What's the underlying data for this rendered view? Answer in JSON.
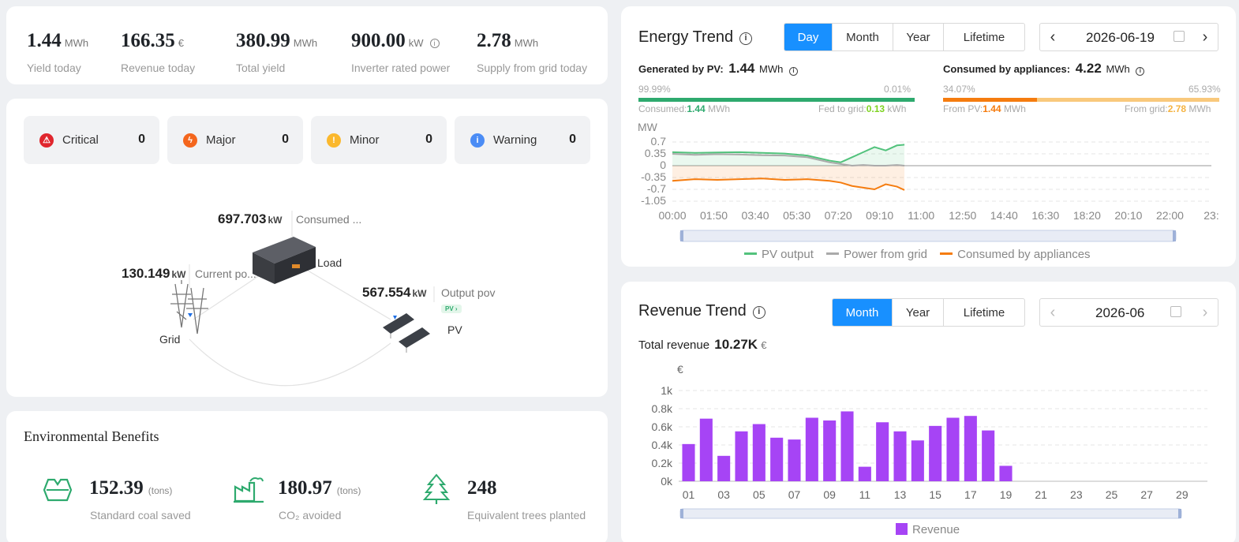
{
  "kpis": [
    {
      "value": "1.44",
      "unit": "MWh",
      "label": "Yield today"
    },
    {
      "value": "166.35",
      "unit": "€",
      "label": "Revenue today"
    },
    {
      "value": "380.99",
      "unit": "MWh",
      "label": "Total yield"
    },
    {
      "value": "900.00",
      "unit": "kW",
      "label": "Inverter rated power"
    },
    {
      "value": "2.78",
      "unit": "MWh",
      "label": "Supply from grid today"
    }
  ],
  "alarms": [
    {
      "label": "Critical",
      "count": "0",
      "color": "#e0262d",
      "icon": "critical-icon"
    },
    {
      "label": "Major",
      "count": "0",
      "color": "#f4661d",
      "icon": "lightning-icon"
    },
    {
      "label": "Minor",
      "count": "0",
      "color": "#fbb82d",
      "icon": "exclamation-icon"
    },
    {
      "label": "Warning",
      "count": "0",
      "color": "#4b8cf5",
      "icon": "info-icon"
    }
  ],
  "flow": {
    "load": {
      "value": "697.703",
      "unit": "kW",
      "desc": "Consumed ...",
      "name": "Load"
    },
    "grid": {
      "value": "130.149",
      "unit": "kW",
      "desc": "Current po...",
      "name": "Grid"
    },
    "pv": {
      "value": "567.554",
      "unit": "kW",
      "desc": "Output pov",
      "name": "PV",
      "badge": "PV ›"
    }
  },
  "environment": {
    "title": "Environmental Benefits",
    "items": [
      {
        "value": "152.39",
        "unit": "(tons)",
        "label": "Standard coal saved",
        "icon": "coal-icon"
      },
      {
        "value": "180.97",
        "unit": "(tons)",
        "label": "CO₂ avoided",
        "icon": "factory-icon"
      },
      {
        "value": "248",
        "unit": "",
        "label": "Equivalent trees planted",
        "icon": "tree-icon"
      }
    ]
  },
  "energy_trend": {
    "title": "Energy Trend",
    "tabs": [
      "Day",
      "Month",
      "Year",
      "Lifetime"
    ],
    "active_tab": "Day",
    "date": "2026-06-19",
    "generated": {
      "label": "Generated by PV:",
      "value": "1.44",
      "unit": "MWh",
      "pct_left": "99.99%",
      "pct_right": "0.01%",
      "left_label": "Consumed:",
      "left_value": "1.44",
      "left_unit": "MWh",
      "right_label": "Fed to grid:",
      "right_value": "0.13",
      "right_unit": "kWh",
      "share": 0.9999
    },
    "consumed": {
      "label": "Consumed by appliances:",
      "value": "4.22",
      "unit": "MWh",
      "pct_left": "34.07%",
      "pct_right": "65.93%",
      "left_label": "From PV:",
      "left_value": "1.44",
      "left_unit": "MWh",
      "right_label": "From grid:",
      "right_value": "2.78",
      "right_unit": "MWh",
      "share": 0.3407
    },
    "colors": {
      "pv": "#2eaa6e",
      "grid": "#aaaaaa",
      "consumed": "#f57c0f",
      "consumed_light": "#f9c97c",
      "pv_line": "#52c27c"
    }
  },
  "revenue_trend": {
    "title": "Revenue Trend",
    "tabs": [
      "Month",
      "Year",
      "Lifetime"
    ],
    "active_tab": "Month",
    "date": "2026-06",
    "total_label": "Total revenue",
    "total_value": "10.27K",
    "total_unit": "€"
  },
  "chart_data": [
    {
      "type": "line",
      "ylabel": "MW",
      "yticks": [
        "0.7",
        "0.35",
        "0",
        "-0.35",
        "-0.7",
        "-1.05"
      ],
      "ylim": [
        -1.05,
        0.7
      ],
      "x_tick_labels": [
        "00:00",
        "01:50",
        "03:40",
        "05:30",
        "07:20",
        "09:10",
        "11:00",
        "12:50",
        "14:40",
        "16:30",
        "18:20",
        "20:10",
        "22:00",
        "23:"
      ],
      "grid": true,
      "legend_position": "bottom",
      "series": [
        {
          "name": "PV output",
          "color": "#52c27c",
          "x": [
            "00:00",
            "01:00",
            "02:00",
            "03:00",
            "04:00",
            "05:00",
            "06:00",
            "07:00",
            "07:30",
            "08:00",
            "08:30",
            "09:00",
            "09:30",
            "10:00",
            "10:20"
          ],
          "values": [
            0.4,
            0.38,
            0.39,
            0.4,
            0.38,
            0.36,
            0.3,
            0.15,
            0.1,
            0.25,
            0.4,
            0.55,
            0.45,
            0.6,
            0.62
          ]
        },
        {
          "name": "Power from grid",
          "color": "#aaaaaa",
          "x": [
            "00:00",
            "01:00",
            "02:00",
            "03:00",
            "04:00",
            "05:00",
            "06:00",
            "07:00",
            "07:30",
            "08:00",
            "08:30",
            "09:00",
            "09:30",
            "10:00",
            "10:20"
          ],
          "values": [
            0.35,
            0.32,
            0.34,
            0.33,
            0.31,
            0.3,
            0.25,
            0.1,
            0.05,
            0.0,
            0.02,
            0.0,
            0.0,
            0.02,
            0.0
          ]
        },
        {
          "name": "Consumed by appliances",
          "color": "#f57c0f",
          "x": [
            "00:00",
            "01:00",
            "02:00",
            "03:00",
            "04:00",
            "05:00",
            "06:00",
            "07:00",
            "07:30",
            "08:00",
            "08:30",
            "09:00",
            "09:30",
            "10:00",
            "10:20"
          ],
          "values": [
            -0.45,
            -0.4,
            -0.42,
            -0.4,
            -0.38,
            -0.42,
            -0.4,
            -0.45,
            -0.5,
            -0.6,
            -0.65,
            -0.7,
            -0.55,
            -0.62,
            -0.72
          ]
        }
      ]
    },
    {
      "type": "bar",
      "ylabel": "€",
      "yticks": [
        "1k",
        "0.8k",
        "0.6k",
        "0.4k",
        "0.2k",
        "0k"
      ],
      "ylim": [
        0,
        1000
      ],
      "categories": [
        "01",
        "02",
        "03",
        "04",
        "05",
        "06",
        "07",
        "08",
        "09",
        "10",
        "11",
        "12",
        "13",
        "14",
        "15",
        "16",
        "17",
        "18",
        "19",
        "20",
        "21",
        "22",
        "23",
        "24",
        "25",
        "26",
        "27",
        "28",
        "29",
        "30"
      ],
      "x_tick_labels": [
        "01",
        "03",
        "05",
        "07",
        "09",
        "11",
        "13",
        "15",
        "17",
        "19",
        "21",
        "23",
        "25",
        "27",
        "29"
      ],
      "grid": true,
      "legend_position": "bottom",
      "series": [
        {
          "name": "Revenue",
          "color": "#a644f5",
          "values": [
            410,
            690,
            280,
            550,
            630,
            480,
            460,
            700,
            670,
            770,
            160,
            650,
            550,
            450,
            610,
            700,
            720,
            560,
            170,
            null,
            null,
            null,
            null,
            null,
            null,
            null,
            null,
            null,
            null,
            null
          ]
        }
      ]
    }
  ]
}
